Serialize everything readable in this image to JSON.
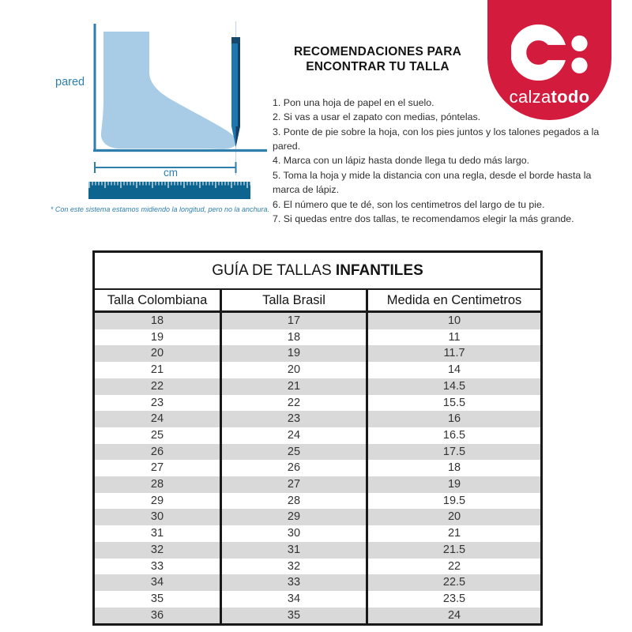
{
  "illustration": {
    "pared_label": "pared",
    "cm_label": "cm",
    "note": "* Con este sistema estamos midiendo la longitud, pero no la anchura.",
    "icons": [
      "foot-silhouette-icon",
      "pencil-icon",
      "ruler-icon",
      "wall-line",
      "floor-line",
      "cm-measure-line"
    ]
  },
  "recommendations": {
    "title_line1": "RECOMENDACIONES PARA",
    "title_line2": "ENCONTRAR TU TALLA",
    "steps": [
      "1. Pon una hoja de papel en el suelo.",
      "2. Si vas a usar el zapato con medias, póntelas.",
      "3. Ponte de pie sobre la hoja, con los pies juntos y los talones pegados a la pared.",
      "4. Marca con un lápiz hasta donde llega tu dedo más largo.",
      "5. Toma la hoja y mide la distancia con una regla, desde el borde hasta la marca de lápiz.",
      "6. El número que te dé, son los centimetros del largo de tu pie.",
      "7. Si quedas entre dos tallas, te recomendamos elegir la más grande."
    ]
  },
  "logo": {
    "monogram_icon": "c-colon-monogram",
    "brand_regular": "calza",
    "brand_bold": "todo"
  },
  "size_table": {
    "title_regular": "GUÍA DE TALLAS",
    "title_bold": "INFANTILES",
    "columns": [
      "Talla Colombiana",
      "Talla Brasil",
      "Medida en Centimetros"
    ],
    "rows": [
      [
        "18",
        "17",
        "10"
      ],
      [
        "19",
        "18",
        "11"
      ],
      [
        "20",
        "19",
        "11.7"
      ],
      [
        "21",
        "20",
        "14"
      ],
      [
        "22",
        "21",
        "14.5"
      ],
      [
        "23",
        "22",
        "15.5"
      ],
      [
        "24",
        "23",
        "16"
      ],
      [
        "25",
        "24",
        "16.5"
      ],
      [
        "26",
        "25",
        "17.5"
      ],
      [
        "27",
        "26",
        "18"
      ],
      [
        "28",
        "27",
        "19"
      ],
      [
        "29",
        "28",
        "19.5"
      ],
      [
        "30",
        "29",
        "20"
      ],
      [
        "31",
        "30",
        "21"
      ],
      [
        "32",
        "31",
        "21.5"
      ],
      [
        "33",
        "32",
        "22"
      ],
      [
        "34",
        "33",
        "22.5"
      ],
      [
        "35",
        "34",
        "23.5"
      ],
      [
        "36",
        "35",
        "24"
      ]
    ]
  },
  "colors": {
    "brand_red": "#d31c3d",
    "accent_blue": "#2e7fae",
    "ruler_blue": "#0d648f",
    "foot_fill": "#a9cce6",
    "row_gray": "#d9d9d9",
    "table_border": "#191919"
  }
}
